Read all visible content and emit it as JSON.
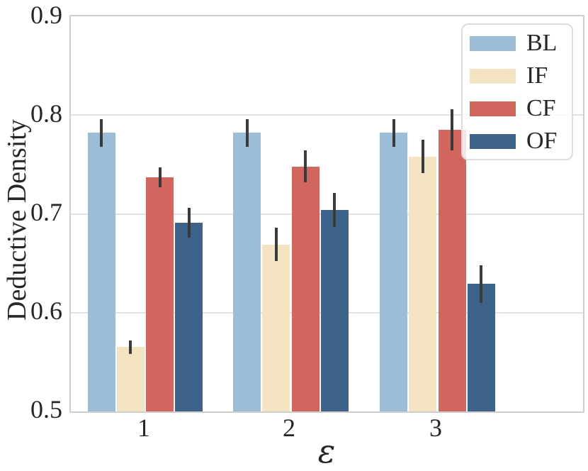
{
  "figure": {
    "background_color": "#ffffff",
    "text_color": "#262626",
    "grid_color": "#e2e2e2",
    "spine_color": "#cfcfcf",
    "error_bar_color": "#3a3a3a"
  },
  "chart_data": {
    "type": "bar",
    "title": "",
    "xlabel": "ε",
    "ylabel": "Deductive Density",
    "categories": [
      "1",
      "2",
      "3"
    ],
    "series": [
      {
        "name": "BL",
        "color": "#9cbdd6",
        "values": [
          0.782,
          0.782,
          0.782
        ],
        "errors": [
          0.014,
          0.014,
          0.014
        ]
      },
      {
        "name": "IF",
        "color": "#f5e4c2",
        "values": [
          0.565,
          0.669,
          0.758
        ],
        "errors": [
          0.007,
          0.017,
          0.017
        ]
      },
      {
        "name": "CF",
        "color": "#d0665e",
        "values": [
          0.737,
          0.748,
          0.785
        ],
        "errors": [
          0.01,
          0.016,
          0.021
        ]
      },
      {
        "name": "OF",
        "color": "#3e638b",
        "values": [
          0.691,
          0.704,
          0.629
        ],
        "errors": [
          0.015,
          0.017,
          0.019
        ]
      }
    ],
    "ylim": [
      0.5,
      0.9
    ],
    "yticks": [
      "0.9",
      "0.8",
      "0.7",
      "0.6",
      "0.5"
    ],
    "ytick_values": [
      0.9,
      0.8,
      0.7,
      0.6,
      0.5
    ],
    "grid": "horizontal",
    "legend_position": "upper right",
    "legend_labels": [
      "BL",
      "IF",
      "CF",
      "OF"
    ],
    "error_bars": true
  }
}
